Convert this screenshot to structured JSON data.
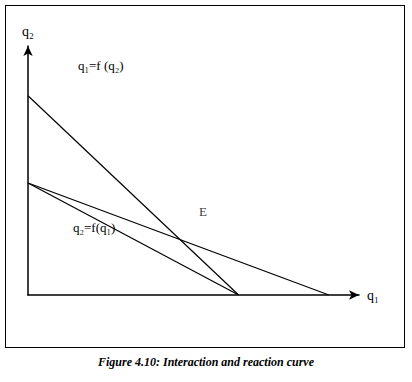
{
  "chart_data": {
    "type": "line",
    "title": "Figure 4.10: Interaction and reaction curve",
    "x_label": "q₁",
    "y_label": "q₂",
    "xlim": [
      0,
      11
    ],
    "ylim": [
      0,
      10
    ],
    "tick_labels": false,
    "grid": false,
    "color": "#000000",
    "series": [
      {
        "name": "q₁=f (q₂)",
        "x": [
          0,
          7
        ],
        "values": [
          8,
          0
        ]
      },
      {
        "name": "q₂=f(q₁)",
        "x": [
          0,
          10
        ],
        "values": [
          4.5,
          0
        ]
      },
      {
        "x": [
          0,
          7
        ],
        "values": [
          4.5,
          0
        ]
      }
    ],
    "annotations": [
      {
        "text": "E",
        "x": 5.05,
        "y": 2.23
      }
    ]
  }
}
